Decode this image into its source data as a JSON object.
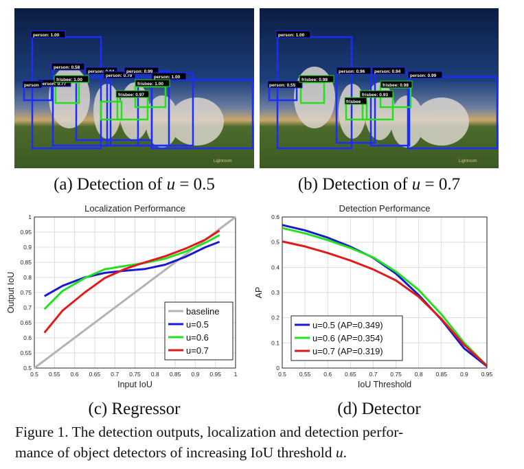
{
  "panel_a": {
    "caption_prefix": "(a) Detection of",
    "caption_var": "u",
    "caption_eq": "= 0.5",
    "watermark": "Lightroom",
    "detections": [
      {
        "label": "person: 1.00",
        "color": "#1b2cff"
      },
      {
        "label": "person: 0.58",
        "color": "#1b2cff"
      },
      {
        "label": "person: 0.77",
        "color": "#1b2cff"
      },
      {
        "label": "person: 0.84",
        "color": "#1b2cff"
      },
      {
        "label": "person: 0.79",
        "color": "#1b2cff"
      },
      {
        "label": "person: 0.99",
        "color": "#1b2cff"
      },
      {
        "label": "person: 1.00",
        "color": "#1b2cff"
      },
      {
        "label": "person",
        "color": "#1b2cff"
      },
      {
        "label": "frisbee: 1.00",
        "color": "#22e01a"
      },
      {
        "label": "frisbee: 0.97",
        "color": "#22e01a"
      },
      {
        "label": "frisbee: 1.00",
        "color": "#22e01a"
      }
    ]
  },
  "panel_b": {
    "caption_prefix": "(b) Detection of",
    "caption_var": "u",
    "caption_eq": "= 0.7",
    "watermark": "Lightroom",
    "detections": [
      {
        "label": "person: 1.00",
        "color": "#1b2cff"
      },
      {
        "label": "person: 0.96",
        "color": "#1b2cff"
      },
      {
        "label": "person: 0.94",
        "color": "#1b2cff"
      },
      {
        "label": "person: 0.99",
        "color": "#1b2cff"
      },
      {
        "label": "person: 0.55",
        "color": "#1b2cff"
      },
      {
        "label": "frisbee: 0.98",
        "color": "#22e01a"
      },
      {
        "label": "frisbee: 0.93",
        "color": "#22e01a"
      },
      {
        "label": "frisbee: 0.98",
        "color": "#22e01a"
      },
      {
        "label": "frisbee",
        "color": "#22e01a"
      }
    ]
  },
  "panel_c": {
    "caption": "(c) Regressor"
  },
  "panel_d": {
    "caption": "(d) Detector"
  },
  "figure_caption": {
    "line1": "Figure 1. The detection outputs, localization and detection perfor-",
    "line2_prefix": "mance of object detectors of increasing IoU threshold",
    "line2_var": "u",
    "line2_suffix": "."
  },
  "chart_data": [
    {
      "type": "line",
      "title": "Localization Performance",
      "xlabel": "Input IoU",
      "ylabel": "Output IoU",
      "xlim": [
        0.5,
        1.0
      ],
      "ylim": [
        0.5,
        1.0
      ],
      "xticks": [
        "0.5",
        "0.55",
        "0.6",
        "0.65",
        "0.7",
        "0.75",
        "0.8",
        "0.85",
        "0.9",
        "0.95",
        "1"
      ],
      "yticks": [
        "0.5",
        "0.55",
        "0.6",
        "0.65",
        "0.7",
        "0.75",
        "0.8",
        "0.85",
        "0.9",
        "0.95",
        "1"
      ],
      "grid": true,
      "legend_position": "bottom-right",
      "series": [
        {
          "name": "baseline",
          "color": "#b3b3b3",
          "x": [
            0.5,
            1.0
          ],
          "y": [
            0.5,
            1.0
          ]
        },
        {
          "name": "u=0.5",
          "color": "#1a1acc",
          "x": [
            0.525,
            0.57,
            0.625,
            0.675,
            0.725,
            0.775,
            0.825,
            0.875,
            0.925,
            0.96
          ],
          "y": [
            0.738,
            0.772,
            0.8,
            0.815,
            0.822,
            0.828,
            0.842,
            0.868,
            0.9,
            0.918
          ]
        },
        {
          "name": "u=0.6",
          "color": "#22e022",
          "x": [
            0.525,
            0.57,
            0.625,
            0.675,
            0.725,
            0.775,
            0.825,
            0.875,
            0.925,
            0.96
          ],
          "y": [
            0.695,
            0.755,
            0.798,
            0.827,
            0.838,
            0.848,
            0.862,
            0.885,
            0.915,
            0.94
          ]
        },
        {
          "name": "u=0.7",
          "color": "#e01a1a",
          "x": [
            0.525,
            0.57,
            0.625,
            0.675,
            0.725,
            0.775,
            0.825,
            0.875,
            0.925,
            0.96
          ],
          "y": [
            0.617,
            0.69,
            0.75,
            0.798,
            0.828,
            0.85,
            0.87,
            0.895,
            0.925,
            0.955
          ]
        }
      ]
    },
    {
      "type": "line",
      "title": "Detection Performance",
      "xlabel": "IoU Threshold",
      "ylabel": "AP",
      "xlim": [
        0.5,
        0.95
      ],
      "ylim": [
        0,
        0.6
      ],
      "xticks": [
        "0.5",
        "0.55",
        "0.6",
        "0.65",
        "0.7",
        "0.75",
        "0.8",
        "0.85",
        "0.9",
        "0.95"
      ],
      "yticks": [
        "0",
        "0.1",
        "0.2",
        "0.3",
        "0.4",
        "0.5",
        "0.6"
      ],
      "grid": true,
      "legend_position": "bottom-left",
      "series": [
        {
          "name": "u=0.5 (AP=0.349)",
          "color": "#1a1acc",
          "x": [
            0.5,
            0.55,
            0.6,
            0.65,
            0.7,
            0.75,
            0.8,
            0.85,
            0.9,
            0.95
          ],
          "y": [
            0.568,
            0.547,
            0.518,
            0.482,
            0.438,
            0.375,
            0.29,
            0.192,
            0.078,
            0.007
          ]
        },
        {
          "name": "u=0.6 (AP=0.354)",
          "color": "#22e022",
          "x": [
            0.5,
            0.55,
            0.6,
            0.65,
            0.7,
            0.75,
            0.8,
            0.85,
            0.9,
            0.95
          ],
          "y": [
            0.556,
            0.535,
            0.508,
            0.477,
            0.44,
            0.383,
            0.31,
            0.213,
            0.1,
            0.009
          ]
        },
        {
          "name": "u=0.7 (AP=0.319)",
          "color": "#e01a1a",
          "x": [
            0.5,
            0.55,
            0.6,
            0.65,
            0.7,
            0.75,
            0.8,
            0.85,
            0.9,
            0.95
          ],
          "y": [
            0.503,
            0.483,
            0.457,
            0.427,
            0.392,
            0.348,
            0.283,
            0.195,
            0.092,
            0.009
          ]
        }
      ]
    }
  ]
}
